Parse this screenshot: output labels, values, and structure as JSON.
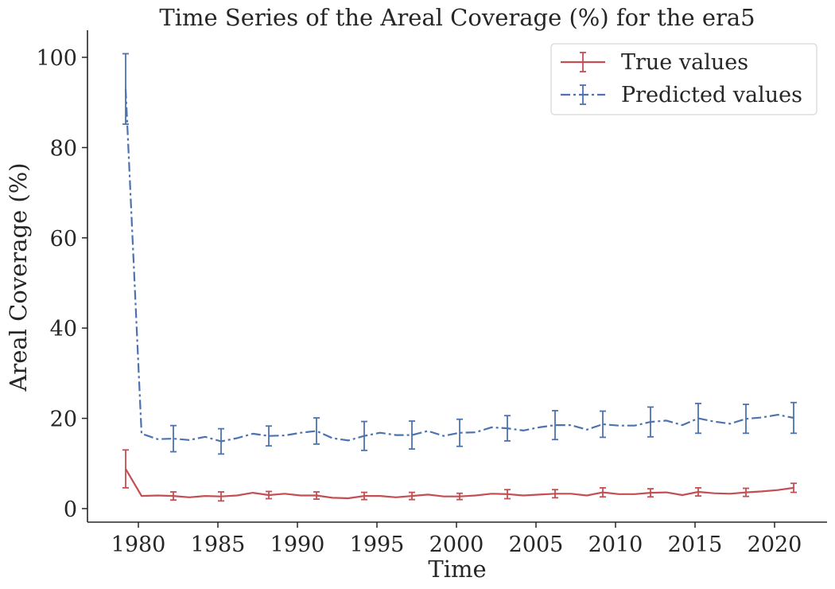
{
  "chart_data": {
    "type": "line",
    "title": "Time Series of the Areal Coverage (%) for the era5",
    "xlabel": "Time",
    "ylabel": "Areal Coverage (%)",
    "xlim": [
      1976.8,
      2023.3
    ],
    "ylim": [
      -3,
      106
    ],
    "x_ticks": [
      1980,
      1985,
      1990,
      1995,
      2000,
      2005,
      2010,
      2015,
      2020
    ],
    "y_ticks": [
      0,
      20,
      40,
      60,
      80,
      100
    ],
    "grid": false,
    "legend_position": "top-right",
    "x": [
      1979.2,
      1980.2,
      1981.2,
      1982.2,
      1983.2,
      1984.2,
      1985.2,
      1986.2,
      1987.2,
      1988.2,
      1989.2,
      1990.2,
      1991.2,
      1992.2,
      1993.2,
      1994.2,
      1995.2,
      1996.2,
      1997.2,
      1998.2,
      1999.2,
      2000.2,
      2001.2,
      2002.2,
      2003.2,
      2004.2,
      2005.2,
      2006.2,
      2007.2,
      2008.2,
      2009.2,
      2010.2,
      2011.2,
      2012.2,
      2013.2,
      2014.2,
      2015.2,
      2016.2,
      2017.2,
      2018.2,
      2019.2,
      2020.2,
      2021.2
    ],
    "series": [
      {
        "name": "True values",
        "color": "#c44e52",
        "style": "solid",
        "values": [
          8.8,
          2.8,
          2.9,
          2.8,
          2.5,
          2.8,
          2.7,
          2.9,
          3.5,
          3.0,
          3.3,
          2.9,
          2.9,
          2.4,
          2.3,
          2.8,
          2.8,
          2.5,
          2.8,
          3.1,
          2.7,
          2.7,
          2.9,
          3.3,
          3.2,
          2.9,
          3.1,
          3.3,
          3.3,
          2.9,
          3.6,
          3.2,
          3.2,
          3.5,
          3.6,
          3.0,
          3.7,
          3.4,
          3.3,
          3.6,
          3.8,
          4.1,
          4.6
        ],
        "error_x": [
          1979.2,
          1982.2,
          1985.2,
          1988.2,
          1991.2,
          1994.2,
          1997.2,
          2000.2,
          2003.2,
          2006.2,
          2009.2,
          2012.2,
          2015.2,
          2018.2,
          2021.2
        ],
        "error_y": [
          8.8,
          2.8,
          2.7,
          3.0,
          2.9,
          2.8,
          2.8,
          2.7,
          3.2,
          3.3,
          3.6,
          3.5,
          3.7,
          3.6,
          4.6
        ],
        "error_size": [
          4.2,
          0.9,
          1.0,
          0.8,
          0.8,
          0.8,
          0.8,
          0.7,
          1.0,
          0.9,
          1.0,
          0.9,
          0.9,
          0.9,
          1.0
        ]
      },
      {
        "name": "Predicted values",
        "color": "#4c72b0",
        "style": "dashdot",
        "values": [
          93.0,
          16.6,
          15.4,
          15.5,
          15.2,
          15.9,
          14.9,
          15.6,
          16.6,
          16.1,
          16.2,
          16.8,
          17.2,
          15.6,
          15.1,
          16.1,
          16.8,
          16.3,
          16.3,
          17.2,
          16.1,
          16.8,
          16.9,
          18.0,
          17.8,
          17.3,
          18.0,
          18.5,
          18.5,
          17.5,
          18.7,
          18.4,
          18.4,
          19.2,
          19.5,
          18.5,
          20.0,
          19.3,
          18.8,
          19.9,
          20.2,
          20.8,
          20.1
        ],
        "error_x": [
          1979.2,
          1982.2,
          1985.2,
          1988.2,
          1991.2,
          1994.2,
          1997.2,
          2000.2,
          2003.2,
          2006.2,
          2009.2,
          2012.2,
          2015.2,
          2018.2,
          2021.2
        ],
        "error_y": [
          93.0,
          15.5,
          14.9,
          16.1,
          17.2,
          16.1,
          16.3,
          16.8,
          17.8,
          18.5,
          18.7,
          19.2,
          20.0,
          19.9,
          20.1
        ],
        "error_size": [
          7.8,
          2.9,
          2.8,
          2.2,
          2.9,
          3.2,
          3.1,
          3.0,
          2.8,
          3.2,
          2.9,
          3.3,
          3.3,
          3.2,
          3.4
        ]
      }
    ]
  }
}
